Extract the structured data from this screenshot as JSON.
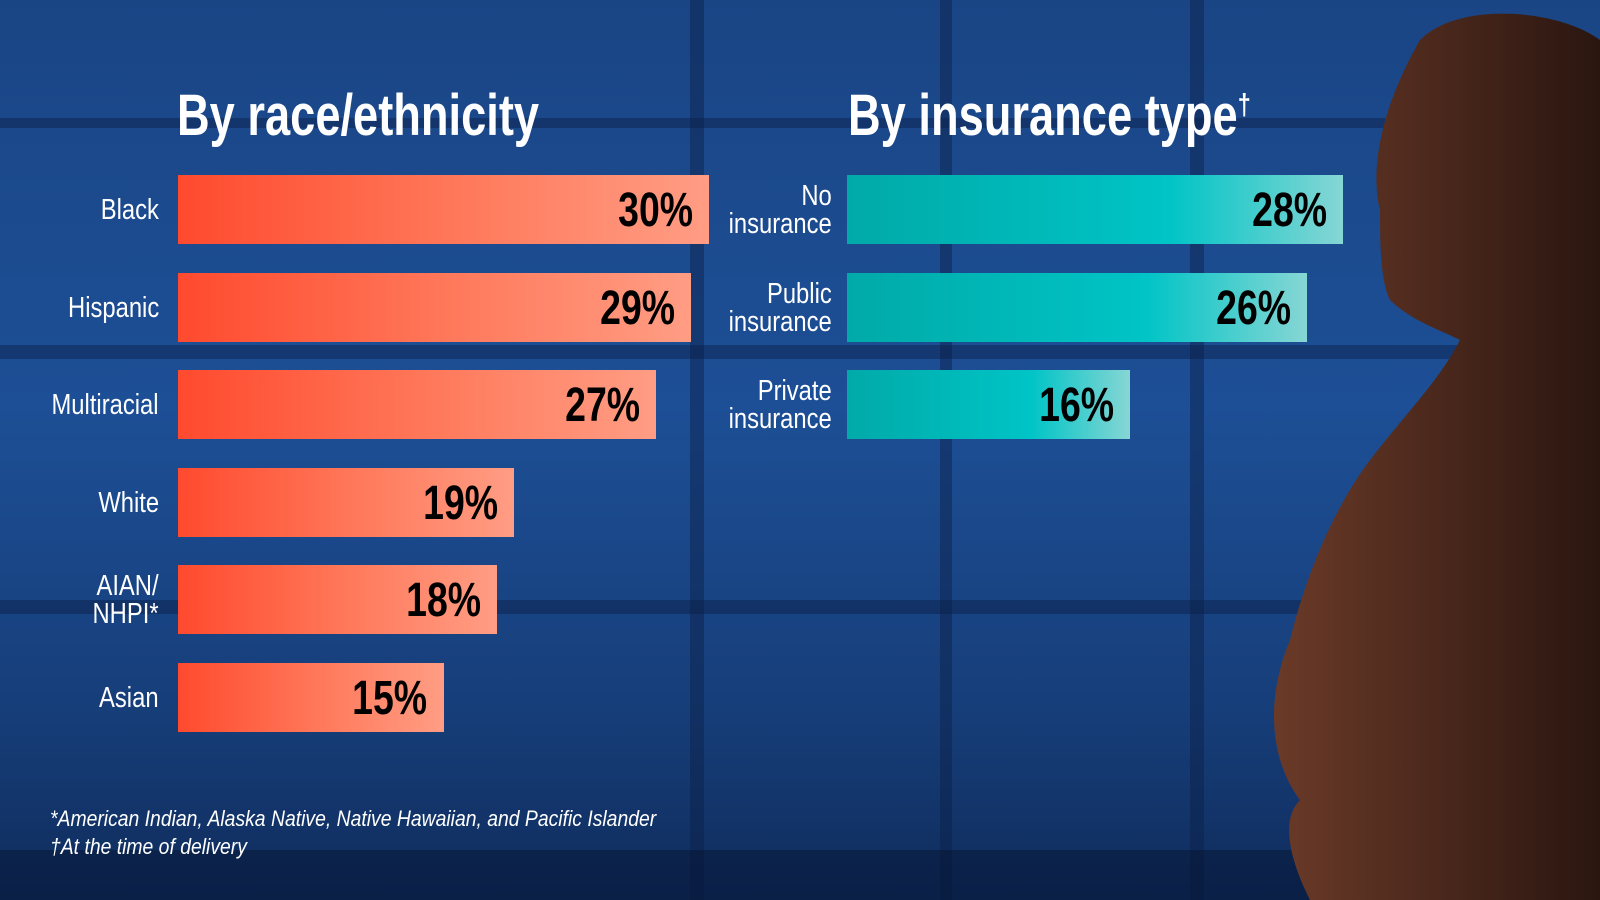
{
  "chart_data": [
    {
      "type": "bar",
      "orientation": "horizontal",
      "title": "By race/ethnicity",
      "categories": [
        "Black",
        "Hispanic",
        "Multiracial",
        "White",
        "AIAN/ NHPI*",
        "Asian"
      ],
      "values": [
        30,
        29,
        27,
        19,
        18,
        15
      ],
      "value_labels": [
        "30%",
        "29%",
        "27%",
        "19%",
        "18%",
        "15%"
      ],
      "color": "#ff5a3c"
    },
    {
      "type": "bar",
      "orientation": "horizontal",
      "title": "By insurance type",
      "title_mark": "†",
      "categories": [
        "No insurance",
        "Public insurance",
        "Private insurance"
      ],
      "values": [
        28,
        26,
        16
      ],
      "value_labels": [
        "28%",
        "26%",
        "16%"
      ],
      "color": "#00bcbc"
    }
  ],
  "footnotes": [
    "*American Indian, Alaska Native, Native Hawaiian, and Pacific Islander",
    "†At the time of delivery"
  ]
}
